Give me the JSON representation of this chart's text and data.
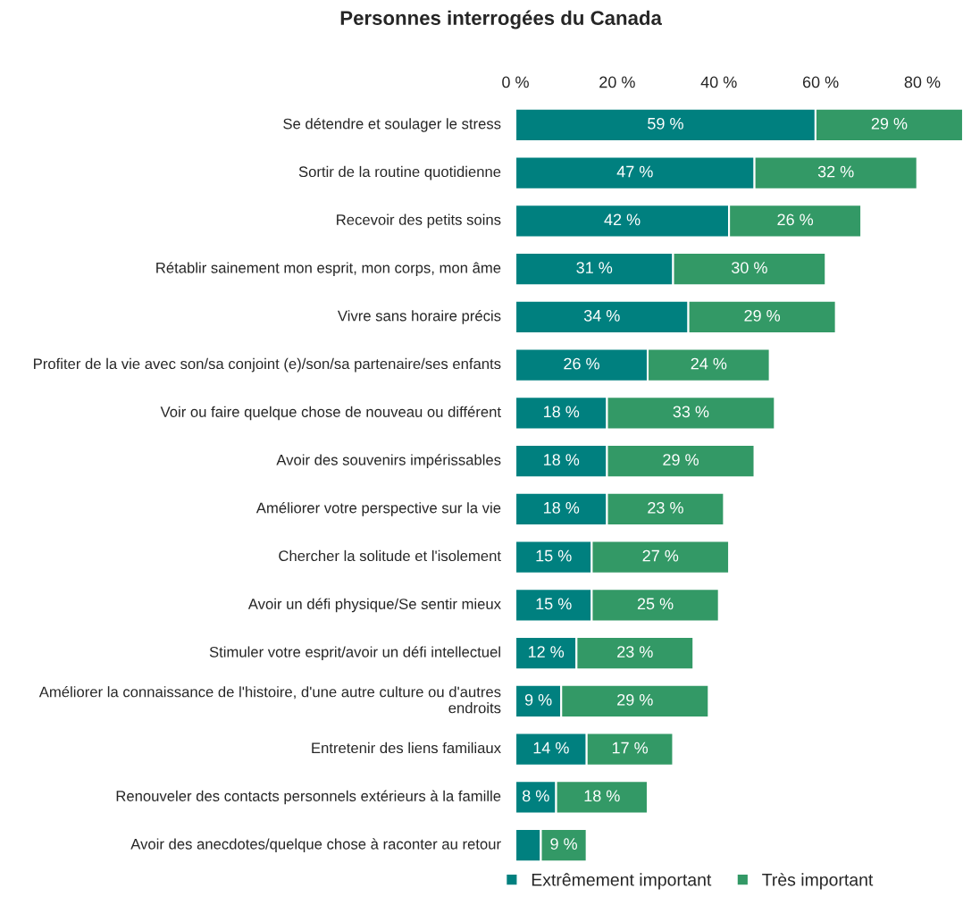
{
  "chart_data": {
    "type": "bar",
    "orientation": "horizontal",
    "stacked": true,
    "title": "Personnes interrogées du Canada",
    "categories": [
      "Se détendre et soulager le stress",
      "Sortir de la routine quotidienne",
      "Recevoir des petits soins",
      "Rétablir sainement mon esprit, mon corps, mon âme",
      "Vivre sans horaire précis",
      "Profiter de la vie avec son/sa conjoint (e)/son/sa partenaire/ses enfants",
      "Voir ou faire quelque chose de nouveau ou différent",
      "Avoir des souvenirs impérissables",
      "Améliorer votre perspective sur la vie",
      "Chercher la solitude et l'isolement",
      "Avoir un défi physique/Se sentir mieux",
      "Stimuler votre esprit/avoir un défi intellectuel",
      "Améliorer la connaissance de l'histoire, d'une autre culture ou d'autres endroits",
      "Entretenir des liens familiaux",
      "Renouveler des contacts personnels extérieurs à la famille",
      "Avoir des anecdotes/quelque chose à raconter au retour"
    ],
    "series": [
      {
        "name": "Extrêmement important",
        "color": "#00807f",
        "values": [
          59,
          47,
          42,
          31,
          34,
          26,
          18,
          18,
          18,
          15,
          15,
          12,
          9,
          14,
          8,
          5
        ],
        "value_labels": [
          "59 %",
          "47 %",
          "42 %",
          "31 %",
          "34 %",
          "26 %",
          "18 %",
          "18 %",
          "18 %",
          "15 %",
          "15 %",
          "12 %",
          "9 %",
          "14 %",
          "8 %",
          null
        ]
      },
      {
        "name": "Très important",
        "color": "#339966",
        "values": [
          29,
          32,
          26,
          30,
          29,
          24,
          33,
          29,
          23,
          27,
          25,
          23,
          29,
          17,
          18,
          9
        ],
        "value_labels": [
          "29 %",
          "32 %",
          "26 %",
          "30 %",
          "29 %",
          "24 %",
          "33 %",
          "29 %",
          "23 %",
          "27 %",
          "25 %",
          "23 %",
          "29 %",
          "17 %",
          "18 %",
          "9 %"
        ]
      }
    ],
    "xlim": [
      0,
      88
    ],
    "xticks": [
      {
        "value": 0,
        "label": "0 %"
      },
      {
        "value": 20,
        "label": "20 %"
      },
      {
        "value": 40,
        "label": "40 %"
      },
      {
        "value": 60,
        "label": "60 %"
      },
      {
        "value": 80,
        "label": "80 %"
      }
    ],
    "grid": false,
    "legend": "bottom"
  }
}
